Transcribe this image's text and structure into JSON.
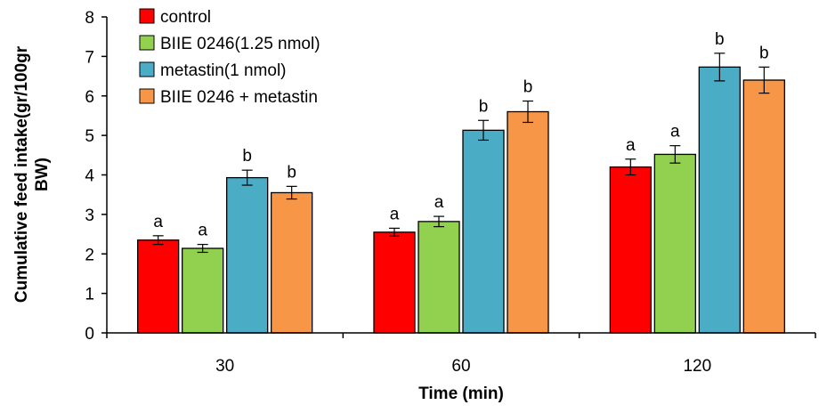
{
  "chart_data": {
    "type": "bar",
    "title": "",
    "xlabel": "Time (min)",
    "ylabel_lines": [
      "Cumulative feed intake(gr/100gr",
      "BW)"
    ],
    "ylim": [
      0,
      8
    ],
    "yticks": [
      "0",
      "1",
      "2",
      "3",
      "4",
      "5",
      "6",
      "7",
      "8"
    ],
    "categories": [
      "30",
      "60",
      "120"
    ],
    "grid": false,
    "legend_position": "top-left",
    "series": [
      {
        "name": "control",
        "color": "#ff0000",
        "values": [
          2.35,
          2.55,
          4.2
        ],
        "errors": [
          0.11,
          0.1,
          0.2
        ],
        "labels": [
          "a",
          "a",
          "a"
        ]
      },
      {
        "name": "BIIE 0246(1.25 nmol)",
        "color": "#92d050",
        "values": [
          2.14,
          2.82,
          4.52
        ],
        "errors": [
          0.1,
          0.13,
          0.22
        ],
        "labels": [
          "a",
          "a",
          "a"
        ]
      },
      {
        "name": "metastin(1 nmol)",
        "color": "#4bacc6",
        "values": [
          3.93,
          5.13,
          6.73
        ],
        "errors": [
          0.19,
          0.25,
          0.35
        ],
        "labels": [
          "b",
          "b",
          "b"
        ]
      },
      {
        "name": "BIIE 0246 + metastin",
        "color": "#f79646",
        "values": [
          3.55,
          5.6,
          6.4
        ],
        "errors": [
          0.16,
          0.27,
          0.33
        ],
        "labels": [
          "b",
          "b",
          "b"
        ]
      }
    ]
  }
}
